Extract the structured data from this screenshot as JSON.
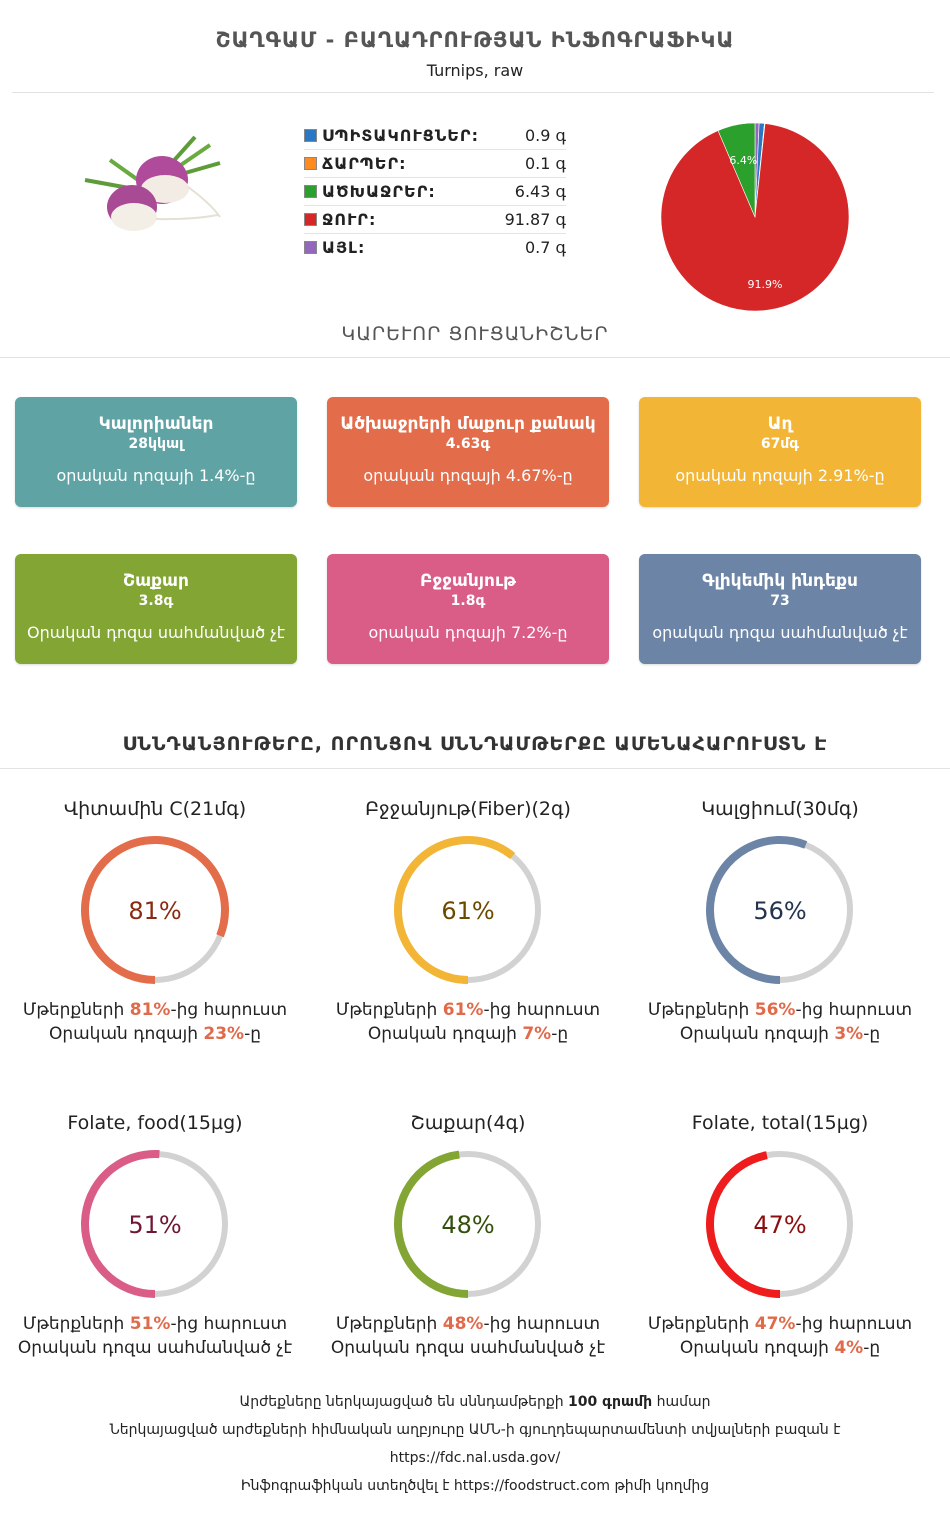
{
  "title": "ՇԱՂԳԱՄ - ԲԱՂԱԴՐՈՒԹՅԱՆ ԻՆՖՈԳՐԱՖԻԿԱ",
  "subtitle": "Turnips, raw",
  "macros": [
    {
      "label": "ՍՊԻՏԱԿՈՒՑՆԵՐ:",
      "value": "0.9 գ",
      "color": "#2a78c4"
    },
    {
      "label": "ՃԱՐՊԵՐ:",
      "value": "0.1 գ",
      "color": "#ff8a1f"
    },
    {
      "label": "ԱԾԽԱՋՐԵՐ:",
      "value": "6.43 գ",
      "color": "#2ca02c"
    },
    {
      "label": "ՋՈՒՐ:",
      "value": "91.87 գ",
      "color": "#d62728"
    },
    {
      "label": "ԱՅԼ:",
      "value": "0.7 գ",
      "color": "#9467bd"
    }
  ],
  "chart_data": {
    "type": "pie",
    "slices": [
      {
        "name": "ՍՊԻՏԱԿՈՒՑՆԵՐ",
        "value": 0.9,
        "color": "#2a78c4"
      },
      {
        "name": "ՃԱՐՊԵՐ",
        "value": 0.1,
        "color": "#ff8a1f"
      },
      {
        "name": "ԱԾԽԱՋՐԵՐ",
        "value": 6.43,
        "color": "#2ca02c",
        "label": "6.4%"
      },
      {
        "name": "ՋՈՒՐ",
        "value": 91.87,
        "color": "#d62728",
        "label": "91.9%"
      },
      {
        "name": "ԱՅԼ",
        "value": 0.7,
        "color": "#9467bd"
      }
    ]
  },
  "key_title": "ԿԱՐԵՒՈՐ ՑՈՒՑԱՆԻՇՆԵՐ",
  "cards": [
    {
      "title": "Կալորիաներ",
      "value": "28կկալ",
      "note": "օրական դոզայի 1.4%-ը",
      "color": "#5fa3a5"
    },
    {
      "title": "Ածխաջրերի մաքուր քանակ",
      "value": "4.63գ",
      "note": "օրական դոզայի 4.67%-ը",
      "color": "#e36c4a"
    },
    {
      "title": "Աղ",
      "value": "67մգ",
      "note": "օրական դոզայի 2.91%-ը",
      "color": "#f2b535"
    },
    {
      "title": "Շաքար",
      "value": "3.8գ",
      "note": "Օրական դոզա սահմանված չէ",
      "color": "#82a534"
    },
    {
      "title": "Բջջանյութ",
      "value": "1.8գ",
      "note": "օրական դոզայի 7.2%-ը",
      "color": "#d95d87"
    },
    {
      "title": "Գլիկեմիկ ինդեքս",
      "value": "73",
      "note": "օրական դոզա սահմանված չէ",
      "color": "#6c84a6"
    }
  ],
  "rich_title": "ՍՆՆԴԱՆՅՈՒԹԵՐԸ, ՈՐՈՆՑՈՎ ՍՆՆԴԱՄԹԵՐՔԸ ԱՄԵՆԱՀԱՐՈՒՍՏՆ Է",
  "nutrients": [
    {
      "title": "Վիտամին C(21մգ)",
      "percent": 81,
      "percent_label": "81%",
      "color": "#e36c4a",
      "text_color": "#8a2a10",
      "line1_pre": "Մթերքների ",
      "line1_hl": "81%",
      "line1_post": "-ից հարուստ",
      "line2_pre": "Օրական դոզայի ",
      "line2_hl": "23%",
      "line2_post": "-ը"
    },
    {
      "title": "Բջջանյութ(Fiber)(2գ)",
      "percent": 61,
      "percent_label": "61%",
      "color": "#f2b535",
      "text_color": "#6b4a00",
      "line1_pre": "Մթերքների ",
      "line1_hl": "61%",
      "line1_post": "-ից հարուստ",
      "line2_pre": "Օրական դոզայի ",
      "line2_hl": "7%",
      "line2_post": "-ը"
    },
    {
      "title": "Կալցիում(30մգ)",
      "percent": 56,
      "percent_label": "56%",
      "color": "#6c84a6",
      "text_color": "#23344e",
      "line1_pre": "Մթերքների ",
      "line1_hl": "56%",
      "line1_post": "-ից հարուստ",
      "line2_pre": "Օրական դոզայի ",
      "line2_hl": "3%",
      "line2_post": "-ը"
    },
    {
      "title": "Folate, food(15µg)",
      "percent": 51,
      "percent_label": "51%",
      "color": "#d95d87",
      "text_color": "#6e1834",
      "line1_pre": "Մթերքների ",
      "line1_hl": "51%",
      "line1_post": "-ից հարուստ",
      "line2_pre": "Օրական դոզա սահմանված չէ",
      "line2_hl": "",
      "line2_post": ""
    },
    {
      "title": "Շաքար(4գ)",
      "percent": 48,
      "percent_label": "48%",
      "color": "#82a534",
      "text_color": "#34500c",
      "line1_pre": "Մթերքների ",
      "line1_hl": "48%",
      "line1_post": "-ից հարուստ",
      "line2_pre": "Օրական դոզա սահմանված չէ",
      "line2_hl": "",
      "line2_post": ""
    },
    {
      "title": "Folate, total(15µg)",
      "percent": 47,
      "percent_label": "47%",
      "color": "#ee1c1c",
      "text_color": "#8a1010",
      "line1_pre": "Մթերքների ",
      "line1_hl": "47%",
      "line1_post": "-ից հարուստ",
      "line2_pre": "Օրական դոզայի ",
      "line2_hl": "4%",
      "line2_post": "-ը"
    }
  ],
  "footer": {
    "line1_pre": "Արժեքները ներկայացված են սննդամթերքի ",
    "line1_bold": "100 գրամի",
    "line1_post": " համար",
    "line2": "Ներկայացված արժեքների հիմնական աղբյուրը ԱՄՆ-ի գյուղդեպարտամենտի տվյալների բազան է",
    "line3": "https://fdc.nal.usda.gov/",
    "line4_pre": "Ինֆոգրաֆիկան ստեղծվել է ",
    "line4_link": "https://foodstruct.com",
    "line4_post": " թիմի կողմից"
  }
}
